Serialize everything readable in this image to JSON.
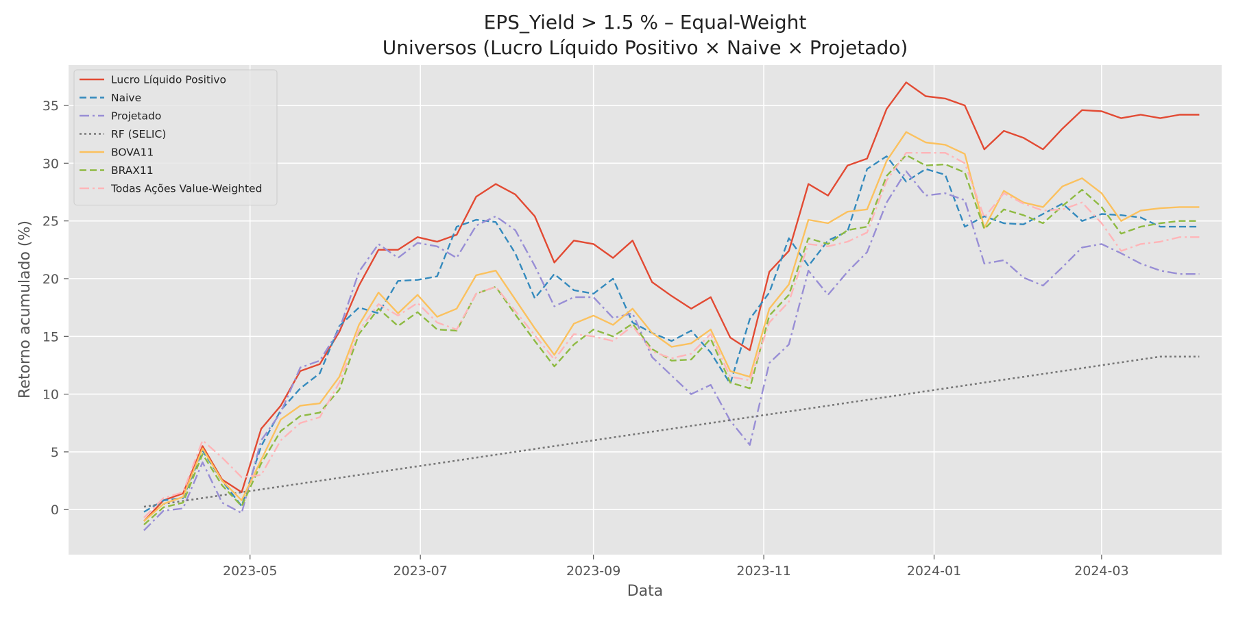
{
  "chart_data": {
    "type": "line",
    "title": "EPS_Yield > 1.5 % – Equal-Weight",
    "subtitle": "Universos (Lucro Líquido Positivo × Naive × Projetado)",
    "xlabel": "Data",
    "ylabel": "Retorno acumulado (%)",
    "xlim": [
      "2023-02-25",
      "2024-04-13"
    ],
    "ylim": [
      -3.9,
      38.5
    ],
    "x_ticks": [
      "2023-05-01",
      "2023-07-01",
      "2023-09-01",
      "2023-11-01",
      "2024-01-01",
      "2024-03-01"
    ],
    "x_tick_labels": [
      "2023-05",
      "2023-07",
      "2023-09",
      "2023-11",
      "2024-01",
      "2024-03"
    ],
    "y_ticks": [
      0,
      5,
      10,
      15,
      20,
      25,
      30,
      35
    ],
    "y_tick_labels": [
      "0",
      "5",
      "10",
      "15",
      "20",
      "25",
      "30",
      "35"
    ],
    "grid": true,
    "legend_position": "top-left",
    "x": [
      "2023-03-24",
      "2023-03-31",
      "2023-04-07",
      "2023-04-14",
      "2023-04-21",
      "2023-04-28",
      "2023-05-05",
      "2023-05-12",
      "2023-05-19",
      "2023-05-26",
      "2023-06-02",
      "2023-06-09",
      "2023-06-16",
      "2023-06-23",
      "2023-06-30",
      "2023-07-07",
      "2023-07-14",
      "2023-07-21",
      "2023-07-28",
      "2023-08-04",
      "2023-08-11",
      "2023-08-18",
      "2023-08-25",
      "2023-09-01",
      "2023-09-08",
      "2023-09-15",
      "2023-09-22",
      "2023-09-29",
      "2023-10-06",
      "2023-10-13",
      "2023-10-20",
      "2023-10-27",
      "2023-11-03",
      "2023-11-10",
      "2023-11-17",
      "2023-11-24",
      "2023-12-01",
      "2023-12-08",
      "2023-12-15",
      "2023-12-22",
      "2023-12-29",
      "2024-01-05",
      "2024-01-12",
      "2024-01-19",
      "2024-01-26",
      "2024-02-02",
      "2024-02-09",
      "2024-02-16",
      "2024-02-23",
      "2024-03-01",
      "2024-03-08",
      "2024-03-15",
      "2024-03-22",
      "2024-03-29",
      "2024-04-05"
    ],
    "series": [
      {
        "name": "Lucro Líquido Positivo",
        "color": "#e24a33",
        "dash": "solid",
        "values": [
          -1.0,
          0.8,
          1.4,
          5.5,
          2.6,
          1.5,
          7.0,
          9.0,
          12.0,
          12.6,
          15.4,
          19.4,
          22.5,
          22.5,
          23.6,
          23.2,
          23.8,
          27.1,
          28.2,
          27.3,
          25.4,
          21.4,
          23.3,
          23.0,
          21.8,
          23.3,
          19.7,
          18.5,
          17.4,
          18.4,
          14.9,
          13.8,
          20.6,
          22.4,
          28.2,
          27.2,
          29.8,
          30.4,
          34.7,
          37.0,
          35.8,
          35.6,
          35.0,
          31.2,
          32.8,
          32.2,
          31.2,
          33.0,
          34.6,
          34.5,
          33.9,
          34.2,
          33.9,
          34.2,
          34.2
        ]
      },
      {
        "name": "Naive",
        "color": "#348abd",
        "dash": "dashed",
        "values": [
          -0.2,
          0.8,
          1.0,
          5.1,
          2.5,
          0.3,
          5.5,
          8.6,
          10.5,
          11.8,
          15.9,
          17.5,
          17.0,
          19.8,
          19.9,
          20.2,
          24.5,
          25.1,
          24.9,
          22.2,
          18.3,
          20.4,
          19.0,
          18.7,
          20.0,
          16.2,
          15.3,
          14.6,
          15.5,
          13.6,
          10.9,
          16.5,
          18.8,
          23.5,
          21.1,
          23.3,
          24.1,
          29.5,
          30.6,
          28.4,
          29.5,
          29.0,
          24.5,
          25.4,
          24.8,
          24.7,
          25.6,
          26.5,
          25.0,
          25.6,
          25.5,
          25.3,
          24.5,
          24.5,
          24.5
        ]
      },
      {
        "name": "Projetado",
        "color": "#988ed5",
        "dash": "dashdot",
        "values": [
          -1.8,
          -0.1,
          0.1,
          4.1,
          0.6,
          -0.3,
          6.0,
          8.4,
          12.3,
          12.9,
          15.6,
          20.6,
          23.0,
          21.8,
          23.1,
          22.8,
          21.8,
          24.6,
          25.4,
          24.2,
          21.1,
          17.6,
          18.4,
          18.4,
          16.6,
          17.0,
          13.2,
          11.6,
          10.0,
          10.8,
          7.7,
          5.6,
          12.7,
          14.3,
          20.7,
          18.6,
          20.6,
          22.3,
          26.6,
          29.3,
          27.2,
          27.4,
          26.8,
          21.3,
          21.6,
          20.1,
          19.4,
          21.0,
          22.7,
          23.0,
          22.2,
          21.3,
          20.7,
          20.4,
          20.4
        ]
      },
      {
        "name": "RF (SELIC)",
        "color": "#777777",
        "dash": "dotted",
        "values": [
          0.25,
          0.5,
          0.75,
          1.0,
          1.25,
          1.5,
          1.75,
          2.0,
          2.25,
          2.5,
          2.75,
          3.0,
          3.25,
          3.5,
          3.75,
          4.0,
          4.25,
          4.5,
          4.75,
          5.0,
          5.25,
          5.5,
          5.75,
          6.0,
          6.25,
          6.5,
          6.75,
          7.0,
          7.25,
          7.5,
          7.75,
          8.0,
          8.25,
          8.5,
          8.75,
          9.0,
          9.25,
          9.5,
          9.75,
          10.0,
          10.25,
          10.5,
          10.75,
          11.0,
          11.25,
          11.5,
          11.75,
          12.0,
          12.25,
          12.5,
          12.75,
          13.0,
          13.25,
          13.25,
          13.25
        ]
      },
      {
        "name": "BOVA11",
        "color": "#fbc15e",
        "dash": "solid",
        "values": [
          -1.0,
          0.5,
          1.1,
          5.3,
          2.5,
          0.8,
          4.3,
          7.8,
          9.0,
          9.2,
          11.5,
          16.0,
          18.8,
          17.0,
          18.6,
          16.7,
          17.4,
          20.3,
          20.7,
          18.2,
          15.7,
          13.4,
          16.1,
          16.8,
          16.0,
          17.4,
          15.3,
          14.1,
          14.4,
          15.6,
          12.0,
          11.5,
          17.4,
          19.5,
          25.1,
          24.8,
          25.8,
          26.0,
          30.2,
          32.7,
          31.8,
          31.6,
          30.8,
          24.4,
          27.6,
          26.6,
          26.2,
          28.0,
          28.7,
          27.4,
          25.0,
          25.9,
          26.1,
          26.2,
          26.2
        ]
      },
      {
        "name": "BRAX11",
        "color": "#8eba42",
        "dash": "dashed",
        "values": [
          -1.3,
          0.2,
          0.6,
          4.8,
          2.1,
          0.3,
          4.0,
          6.8,
          8.1,
          8.4,
          10.4,
          15.2,
          17.4,
          15.9,
          17.1,
          15.6,
          15.5,
          18.7,
          19.3,
          16.9,
          14.6,
          12.4,
          14.3,
          15.6,
          15.0,
          16.1,
          13.9,
          12.9,
          13.0,
          14.8,
          11.0,
          10.5,
          16.8,
          18.6,
          23.5,
          23.0,
          24.2,
          24.5,
          28.9,
          30.7,
          29.8,
          29.9,
          29.2,
          24.3,
          26.0,
          25.5,
          24.8,
          26.3,
          27.7,
          26.2,
          23.9,
          24.5,
          24.8,
          25.0,
          25.0
        ]
      },
      {
        "name": "Todas Ações Value-Weighted",
        "color": "#ffb5b8",
        "dash": "dashdot",
        "values": [
          -0.7,
          1.0,
          1.5,
          6.0,
          4.5,
          2.8,
          3.0,
          6.0,
          7.5,
          8.0,
          11.0,
          15.5,
          17.8,
          16.8,
          17.9,
          16.2,
          15.6,
          18.7,
          19.3,
          17.2,
          15.1,
          13.0,
          15.2,
          15.0,
          14.6,
          15.9,
          13.7,
          13.1,
          13.5,
          15.2,
          11.5,
          11.2,
          16.2,
          18.0,
          23.0,
          22.8,
          23.2,
          24.0,
          28.5,
          30.9,
          30.9,
          30.9,
          30.0,
          25.3,
          27.4,
          26.5,
          25.9,
          26.0,
          26.6,
          24.8,
          22.4,
          23.0,
          23.2,
          23.6,
          23.6
        ]
      }
    ]
  }
}
